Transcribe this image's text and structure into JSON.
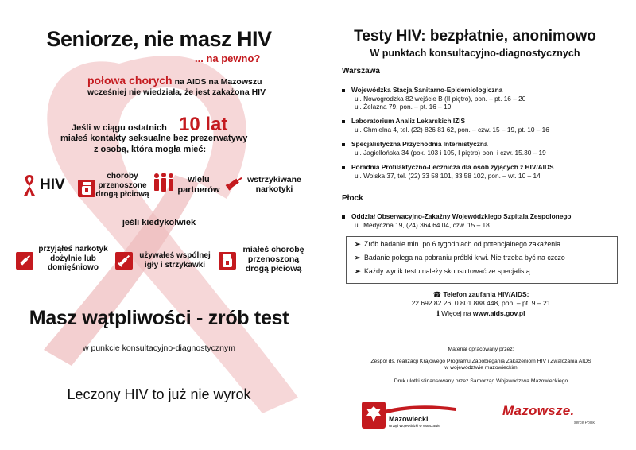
{
  "left": {
    "title": "Seniorze, nie masz HIV",
    "subtitle": "... na pewno?",
    "half_red": "połowa chorych",
    "half_rest1": "na AIDS na Mazowszu",
    "half_rest2": "wcześniej nie wiedziała, że jest zakażona HIV",
    "if_text1": "Jeśli w ciągu ostatnich",
    "years": "10 lat",
    "if_text2": "miałeś kontakty seksualne bez prezerwatywy",
    "if_text3": "z osobą, która mogła mieć:",
    "risks": [
      {
        "label": "HIV",
        "icon": "ribbon-icon"
      },
      {
        "label": "choroby\nprzenoszone\ndrogą płciową",
        "icon": "pills-icon"
      },
      {
        "label": "wielu\npartnerów",
        "icon": "people-icon"
      },
      {
        "label": "wstrzykiwane\nnarkotyki",
        "icon": "syringe-icon"
      }
    ],
    "ever": "jeśli kiedykolwiek",
    "ever_items": [
      {
        "label": "przyjąłeś narkotyk\ndożylnie lub\ndomięśniowo",
        "icon": "injection-icon"
      },
      {
        "label": "używałeś wspólnej\nigły i strzykawki",
        "icon": "needle-icon"
      },
      {
        "label": "miałeś chorobę\nprzenoszoną\ndrogą płciową",
        "icon": "pills-icon"
      }
    ],
    "doubt": "Masz wątpliwości - zrób test",
    "point": "w punkcie konsultacyjno-diagnostycznym",
    "treated": "Leczony HIV to już nie wyrok"
  },
  "right": {
    "title": "Testy HIV: bezpłatnie, anonimowo",
    "subtitle": "W punktach konsultacyjno-diagnostycznych",
    "city1": "Warszawa",
    "warsaw": [
      {
        "name": "Wojewódzka Stacja Sanitarno-Epidemiologiczna",
        "addr": [
          "ul. Nowogrodzka 82 wejście B (II piętro), pon. – pt. 16 – 20",
          "ul. Żelazna 79, pon. – pt. 16 – 19"
        ]
      },
      {
        "name": "Laboratorium Analiz Lekarskich IZIS",
        "addr": [
          "ul. Chmielna 4, tel. (22) 826 81 62, pon. – czw. 15 – 19, pt. 10 – 16"
        ]
      },
      {
        "name": "Specjalistyczna Przychodnia Internistyczna",
        "addr": [
          "ul. Jagiellońska 34 (pok. 103 i 105, I piętro) pon. i czw. 15.30 – 19"
        ]
      },
      {
        "name": "Poradnia Profilaktyczno-Lecznicza dla osób żyjących z HIV/AIDS",
        "addr": [
          "ul. Wolska 37, tel. (22) 33 58 101, 33 58 102, pon. – wt. 10 – 14"
        ]
      }
    ],
    "city2": "Płock",
    "plock": [
      {
        "name": "Oddział Obserwacyjno-Zakaźny Wojewódzkiego Szpitala Zespolonego",
        "addr": [
          "ul. Medyczna 19, (24) 364 64 04, czw. 15 – 18"
        ]
      }
    ],
    "tips": [
      "Zrób badanie min. po 6 tygodniach od potencjalnego zakażenia",
      "Badanie polega na pobraniu próbki krwi. Nie trzeba być na czczo",
      "Każdy wynik testu należy skonsultować ze specjalistą"
    ],
    "phone_label": "Telefon zaufania HIV/AIDS:",
    "phone_numbers": "22 692 82 26, 0 801 888 448, pon. – pt. 9 – 21",
    "more_prefix": "Więcej na",
    "more_url": "www.aids.gov.pl",
    "prepared_by": "Materiał opracowany przez:",
    "team": "Zespół ds. realizacji Krajowego Programu Zapobiegania Zakażeniom HIV i Zwalczania AIDS",
    "team2": "w województwie mazowieckim",
    "funded": "Druk ulotki sfinansowany przez Samorząd Województwa Mazowieckiego",
    "logo1_name": "Mazowiecki",
    "logo1_sub": "Urząd Wojewódzki w Warszawie",
    "logo2_name": "Mazowsze.",
    "logo2_sub": "serce Polski"
  },
  "colors": {
    "accent": "#c41a1f",
    "ribbon": "#f3c9cb"
  }
}
